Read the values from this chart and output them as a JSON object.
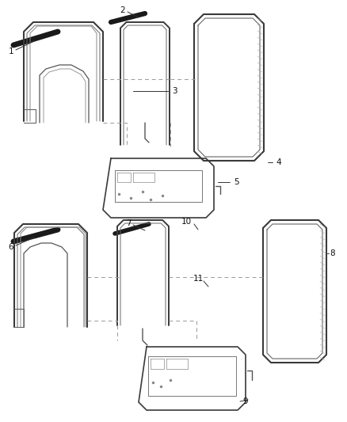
{
  "background_color": "#ffffff",
  "line_color": "#444444",
  "label_color": "#111111",
  "fig_width": 4.38,
  "fig_height": 5.33,
  "dpi": 100
}
